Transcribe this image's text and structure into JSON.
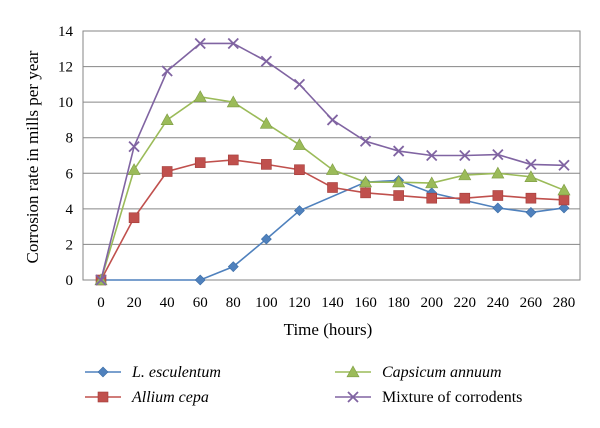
{
  "chart_data": {
    "type": "line",
    "title": "",
    "xlabel": "Time (hours)",
    "ylabel": "Corrosion rate in mills per year",
    "xlim": [
      0,
      290
    ],
    "ylim": [
      0,
      14
    ],
    "x_ticks": [
      "0",
      "20",
      "40",
      "60",
      "80",
      "100",
      "120",
      "140",
      "160",
      "180",
      "200",
      "220",
      "240",
      "260",
      "280"
    ],
    "y_ticks": [
      "0",
      "2",
      "4",
      "6",
      "8",
      "10",
      "12",
      "14"
    ],
    "grid": true,
    "legend_position": "bottom",
    "series": [
      {
        "name": "L. esculentum",
        "italic": true,
        "color": "#4f81bd",
        "marker": "diamond",
        "x": [
          0,
          60,
          80,
          100,
          120,
          160,
          180,
          200,
          240,
          260,
          280
        ],
        "values": [
          0,
          0,
          0.75,
          2.3,
          3.9,
          5.5,
          5.6,
          4.9,
          4.05,
          3.8,
          4.05
        ]
      },
      {
        "name": "Allium cepa",
        "italic": true,
        "color": "#c0504d",
        "marker": "square",
        "x": [
          0,
          20,
          40,
          60,
          80,
          100,
          120,
          140,
          160,
          180,
          200,
          220,
          240,
          260,
          280
        ],
        "values": [
          0,
          3.5,
          6.1,
          6.6,
          6.75,
          6.5,
          6.2,
          5.2,
          4.9,
          4.75,
          4.6,
          4.6,
          4.75,
          4.6,
          4.5
        ]
      },
      {
        "name": "Capsicum annuum",
        "italic": true,
        "color": "#9bbb59",
        "marker": "triangle",
        "x": [
          0,
          20,
          40,
          60,
          80,
          100,
          120,
          140,
          160,
          180,
          200,
          220,
          240,
          260,
          280
        ],
        "values": [
          0,
          6.2,
          9.0,
          10.3,
          10.0,
          8.8,
          7.6,
          6.2,
          5.5,
          5.5,
          5.45,
          5.9,
          6.0,
          5.8,
          5.05
        ]
      },
      {
        "name": "Mixture of corrodents",
        "italic": false,
        "color": "#8064a2",
        "marker": "x",
        "x": [
          0,
          20,
          40,
          60,
          80,
          100,
          120,
          140,
          160,
          180,
          200,
          220,
          240,
          260,
          280
        ],
        "values": [
          0,
          7.5,
          11.75,
          13.3,
          13.3,
          12.3,
          11.0,
          9.0,
          7.8,
          7.25,
          7.0,
          7.0,
          7.05,
          6.5,
          6.45
        ]
      }
    ]
  }
}
